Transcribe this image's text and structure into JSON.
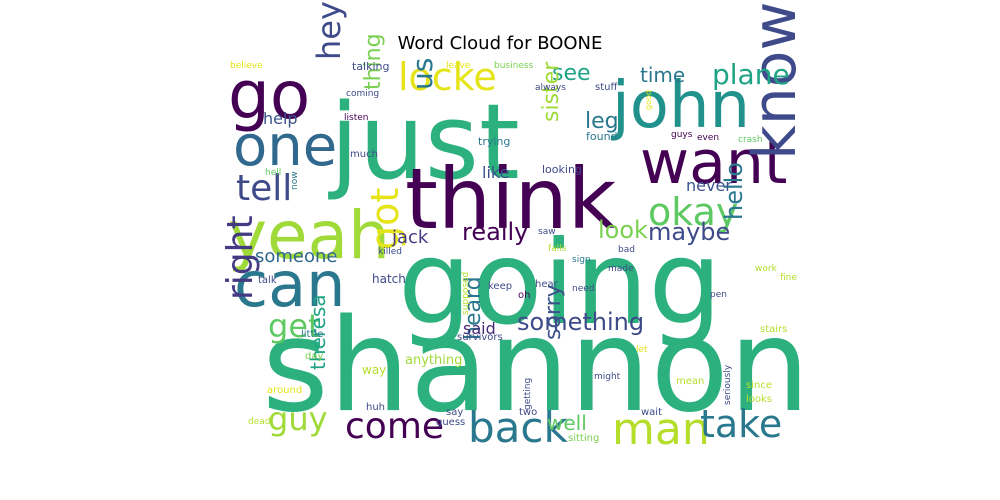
{
  "chart_data": {
    "type": "wordcloud",
    "title": "Word Cloud for BOONE",
    "words": [
      {
        "text": "shannon",
        "weight": 100,
        "color": "#2cb17e"
      },
      {
        "text": "going",
        "weight": 92,
        "color": "#2cb17e"
      },
      {
        "text": "just",
        "weight": 82,
        "color": "#2cb17e"
      },
      {
        "text": "think",
        "weight": 70,
        "color": "#440154"
      },
      {
        "text": "john",
        "weight": 52,
        "color": "#21918c"
      },
      {
        "text": "want",
        "weight": 52,
        "color": "#440154"
      },
      {
        "text": "yeah",
        "weight": 55,
        "color": "#a0da39"
      },
      {
        "text": "can",
        "weight": 50,
        "color": "#2a788e"
      },
      {
        "text": "know",
        "weight": 48,
        "color": "#3e4a89"
      },
      {
        "text": "go",
        "weight": 48,
        "color": "#440154"
      },
      {
        "text": "one",
        "weight": 45,
        "color": "#31688e"
      },
      {
        "text": "man",
        "weight": 36,
        "color": "#b5de2b"
      },
      {
        "text": "back",
        "weight": 34,
        "color": "#2a788e"
      },
      {
        "text": "take",
        "weight": 32,
        "color": "#2a788e"
      },
      {
        "text": "come",
        "weight": 30,
        "color": "#440154"
      },
      {
        "text": "right",
        "weight": 30,
        "color": "#443a83"
      },
      {
        "text": "okay",
        "weight": 30,
        "color": "#5ec962"
      },
      {
        "text": "tell",
        "weight": 30,
        "color": "#3e4a89"
      },
      {
        "text": "locke",
        "weight": 30,
        "color": "#e5e419"
      },
      {
        "text": "got",
        "weight": 30,
        "color": "#e5e419"
      },
      {
        "text": "hey",
        "weight": 28,
        "color": "#3e4a89"
      },
      {
        "text": "guy",
        "weight": 26,
        "color": "#a0da39"
      },
      {
        "text": "get",
        "weight": 26,
        "color": "#5ec962"
      },
      {
        "text": "plane",
        "weight": 24,
        "color": "#20a486"
      },
      {
        "text": "something",
        "weight": 22,
        "color": "#3e4a89"
      },
      {
        "text": "maybe",
        "weight": 20,
        "color": "#3e4a89"
      },
      {
        "text": "look",
        "weight": 20,
        "color": "#7ad151"
      },
      {
        "text": "really",
        "weight": 20,
        "color": "#440154"
      },
      {
        "text": "hello",
        "weight": 20,
        "color": "#2a788e"
      },
      {
        "text": "us",
        "weight": 22,
        "color": "#2a788e"
      },
      {
        "text": "see",
        "weight": 20,
        "color": "#20a486"
      },
      {
        "text": "leg",
        "weight": 20,
        "color": "#2a788e"
      },
      {
        "text": "sister",
        "weight": 18,
        "color": "#a0da39"
      },
      {
        "text": "thing",
        "weight": 18,
        "color": "#7ad151"
      },
      {
        "text": "sorry",
        "weight": 18,
        "color": "#3b528b"
      },
      {
        "text": "well",
        "weight": 18,
        "color": "#5ec962"
      },
      {
        "text": "heard",
        "weight": 18,
        "color": "#2a788e"
      },
      {
        "text": "theresa",
        "weight": 18,
        "color": "#20a486"
      },
      {
        "text": "time",
        "weight": 18,
        "color": "#2a788e"
      },
      {
        "text": "someone",
        "weight": 16,
        "color": "#31688e"
      },
      {
        "text": "jack",
        "weight": 16,
        "color": "#443a83"
      },
      {
        "text": "help",
        "weight": 16,
        "color": "#3b528b"
      },
      {
        "text": "like",
        "weight": 16,
        "color": "#3b528b"
      },
      {
        "text": "never",
        "weight": 16,
        "color": "#3b528b"
      },
      {
        "text": "said",
        "weight": 16,
        "color": "#482878"
      },
      {
        "text": "anything",
        "weight": 12,
        "color": "#a0da39"
      },
      {
        "text": "way",
        "weight": 12,
        "color": "#b5de2b"
      },
      {
        "text": "hatch",
        "weight": 11,
        "color": "#3e4a89"
      },
      {
        "text": "talking",
        "weight": 11,
        "color": "#3e4a89"
      },
      {
        "text": "looking",
        "weight": 11,
        "color": "#3e4a89"
      },
      {
        "text": "trying",
        "weight": 11,
        "color": "#2a788e"
      },
      {
        "text": "found",
        "weight": 11,
        "color": "#2a788e"
      },
      {
        "text": "stuff",
        "weight": 10,
        "color": "#3e4a89"
      },
      {
        "text": "much",
        "weight": 10,
        "color": "#3e4a89"
      },
      {
        "text": "talk",
        "weight": 10,
        "color": "#3e4a89"
      },
      {
        "text": "little",
        "weight": 10,
        "color": "#2a788e"
      },
      {
        "text": "survivors",
        "weight": 10,
        "color": "#3e4a89"
      },
      {
        "text": "keep",
        "weight": 10,
        "color": "#3e4a89"
      },
      {
        "text": "hear",
        "weight": 10,
        "color": "#3e4a89"
      },
      {
        "text": "oh",
        "weight": 10,
        "color": "#440154"
      },
      {
        "text": "wait",
        "weight": 10,
        "color": "#3e4a89"
      },
      {
        "text": "mean",
        "weight": 10,
        "color": "#b5de2b"
      },
      {
        "text": "since",
        "weight": 10,
        "color": "#b5de2b"
      },
      {
        "text": "looks",
        "weight": 10,
        "color": "#b5de2b"
      },
      {
        "text": "stairs",
        "weight": 10,
        "color": "#b5de2b"
      },
      {
        "text": "sitting",
        "weight": 10,
        "color": "#7ad151"
      },
      {
        "text": "guess",
        "weight": 10,
        "color": "#3e4a89"
      },
      {
        "text": "two",
        "weight": 10,
        "color": "#3e4a89"
      },
      {
        "text": "huh",
        "weight": 10,
        "color": "#3e4a89"
      },
      {
        "text": "say",
        "weight": 10,
        "color": "#3e4a89"
      },
      {
        "text": "day",
        "weight": 10,
        "color": "#7ad151"
      },
      {
        "text": "around",
        "weight": 10,
        "color": "#e5e419"
      },
      {
        "text": "dead",
        "weight": 9,
        "color": "#b5de2b"
      },
      {
        "text": "believe",
        "weight": 9,
        "color": "#e5e419"
      },
      {
        "text": "leave",
        "weight": 9,
        "color": "#e5e419"
      },
      {
        "text": "business",
        "weight": 9,
        "color": "#7ad151"
      },
      {
        "text": "always",
        "weight": 9,
        "color": "#3e4a89"
      },
      {
        "text": "coming",
        "weight": 9,
        "color": "#3e4a89"
      },
      {
        "text": "listen",
        "weight": 9,
        "color": "#440154"
      },
      {
        "text": "guys",
        "weight": 9,
        "color": "#440154"
      },
      {
        "text": "even",
        "weight": 9,
        "color": "#440154"
      },
      {
        "text": "crash",
        "weight": 9,
        "color": "#5ec962"
      },
      {
        "text": "good",
        "weight": 8,
        "color": "#e5e419"
      },
      {
        "text": "hell",
        "weight": 9,
        "color": "#5ec962"
      },
      {
        "text": "now",
        "weight": 9,
        "color": "#2a788e"
      },
      {
        "text": "killed",
        "weight": 9,
        "color": "#3e4a89"
      },
      {
        "text": "saw",
        "weight": 9,
        "color": "#3e4a89"
      },
      {
        "text": "falls",
        "weight": 9,
        "color": "#b5de2b"
      },
      {
        "text": "bad",
        "weight": 9,
        "color": "#3e4a89"
      },
      {
        "text": "sign",
        "weight": 9,
        "color": "#2a788e"
      },
      {
        "text": "made",
        "weight": 9,
        "color": "#3e4a89"
      },
      {
        "text": "need",
        "weight": 9,
        "color": "#3e4a89"
      },
      {
        "text": "work",
        "weight": 9,
        "color": "#b5de2b"
      },
      {
        "text": "fine",
        "weight": 9,
        "color": "#b5de2b"
      },
      {
        "text": "pen",
        "weight": 9,
        "color": "#3e4a89"
      },
      {
        "text": "supposed",
        "weight": 9,
        "color": "#b5de2b"
      },
      {
        "text": "let",
        "weight": 9,
        "color": "#e5e419"
      },
      {
        "text": "might",
        "weight": 9,
        "color": "#3e4a89"
      },
      {
        "text": "seriously",
        "weight": 9,
        "color": "#3e4a89"
      },
      {
        "text": "getting",
        "weight": 9,
        "color": "#3e4a89"
      }
    ]
  }
}
